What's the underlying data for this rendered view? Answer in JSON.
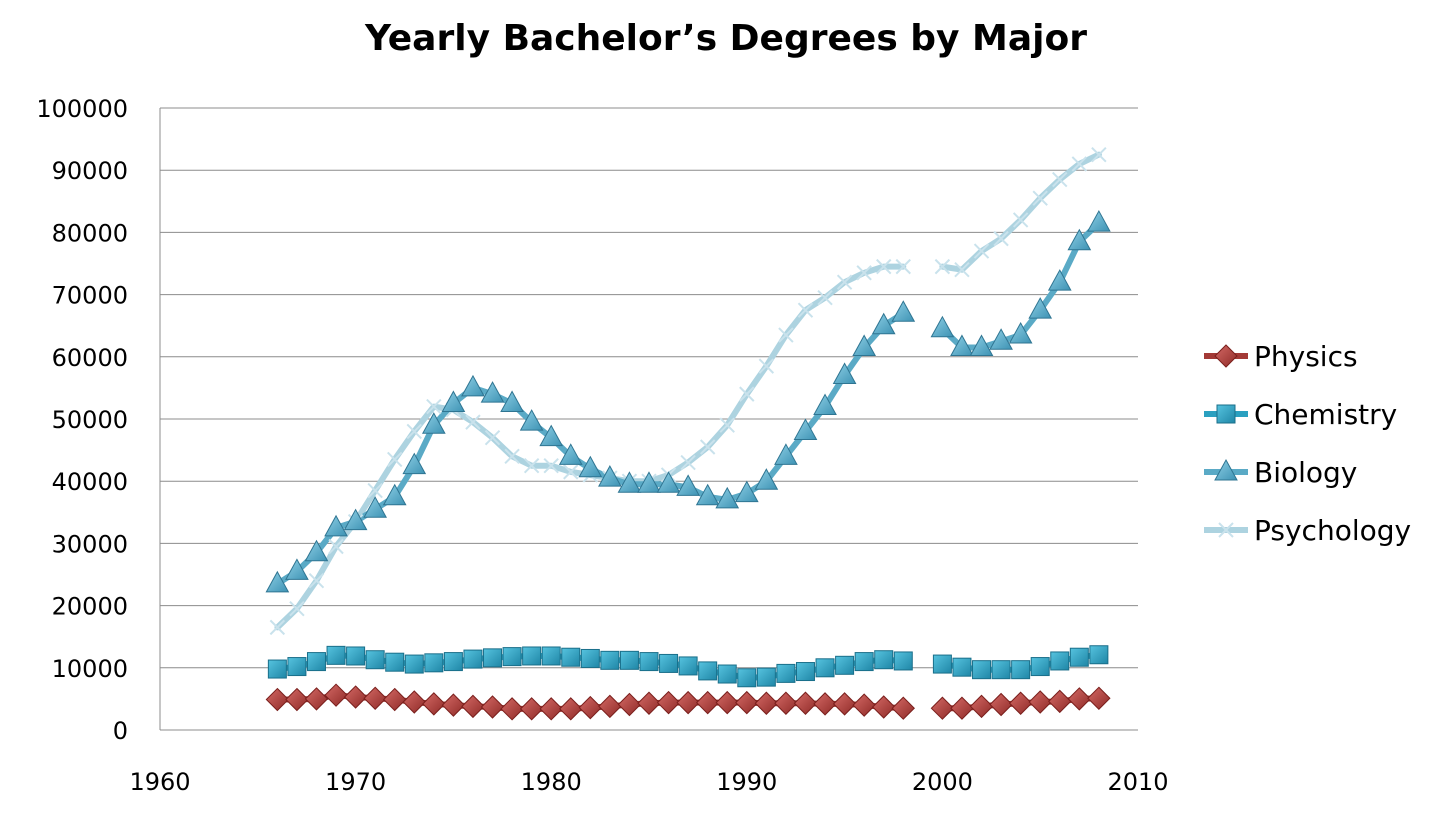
{
  "chart_data": {
    "type": "line",
    "title": "Yearly Bachelor’s Degrees by Major",
    "xlabel": "",
    "ylabel": "",
    "xlim": [
      1960,
      2010
    ],
    "ylim": [
      0,
      100000
    ],
    "x_ticks": [
      1960,
      1970,
      1980,
      1990,
      2000,
      2010
    ],
    "y_ticks": [
      0,
      10000,
      20000,
      30000,
      40000,
      50000,
      60000,
      70000,
      80000,
      90000,
      100000
    ],
    "grid": "horizontal",
    "legend_position": "right",
    "x": [
      1966,
      1967,
      1968,
      1969,
      1970,
      1971,
      1972,
      1973,
      1974,
      1975,
      1976,
      1977,
      1978,
      1979,
      1980,
      1981,
      1982,
      1983,
      1984,
      1985,
      1986,
      1987,
      1988,
      1989,
      1990,
      1991,
      1992,
      1993,
      1994,
      1995,
      1996,
      1997,
      1998,
      1999,
      2000,
      2001,
      2002,
      2003,
      2004,
      2005,
      2006,
      2007,
      2008
    ],
    "series": [
      {
        "name": "Physics",
        "color": "#a33a36",
        "marker": "diamond",
        "values": [
          4900,
          4900,
          5000,
          5600,
          5300,
          5100,
          4900,
          4500,
          4200,
          4000,
          3800,
          3700,
          3400,
          3400,
          3400,
          3400,
          3600,
          3800,
          4100,
          4300,
          4400,
          4400,
          4400,
          4400,
          4400,
          4300,
          4300,
          4300,
          4200,
          4200,
          4000,
          3700,
          3500,
          null,
          3500,
          3500,
          3800,
          4100,
          4300,
          4500,
          4600,
          5000,
          5100
        ]
      },
      {
        "name": "Chemistry",
        "color": "#2aa0c0",
        "marker": "square",
        "values": [
          9800,
          10200,
          11000,
          12000,
          11900,
          11300,
          10900,
          10600,
          10800,
          11000,
          11400,
          11600,
          11800,
          11900,
          11900,
          11700,
          11500,
          11200,
          11200,
          11000,
          10700,
          10300,
          9500,
          9000,
          8400,
          8500,
          9100,
          9400,
          10000,
          10400,
          11000,
          11300,
          11100,
          null,
          10600,
          10100,
          9700,
          9700,
          9700,
          10200,
          11100,
          11700,
          12100
        ]
      },
      {
        "name": "Biology",
        "color": "#5aaac6",
        "marker": "triangle",
        "values": [
          23500,
          25500,
          28500,
          32500,
          33500,
          35500,
          37500,
          42500,
          49000,
          52500,
          55000,
          54000,
          52500,
          49500,
          47000,
          44000,
          42000,
          40500,
          39500,
          39500,
          39500,
          39000,
          37500,
          37000,
          38000,
          40000,
          44000,
          48000,
          52000,
          57000,
          61500,
          65000,
          67000,
          null,
          64500,
          61500,
          61500,
          62500,
          63500,
          67500,
          72000,
          78500,
          81500
        ]
      },
      {
        "name": "Psychology",
        "color": "#add3e0",
        "marker": "x",
        "values": [
          16500,
          19500,
          24000,
          29500,
          33500,
          38500,
          43500,
          48000,
          52000,
          51500,
          49500,
          47000,
          44000,
          42500,
          42500,
          41500,
          41000,
          40500,
          40000,
          40000,
          41000,
          43000,
          45500,
          49000,
          54000,
          58500,
          63500,
          67500,
          69500,
          72000,
          73500,
          74500,
          74500,
          null,
          74500,
          74000,
          77000,
          79000,
          82000,
          85500,
          88500,
          91000,
          92500
        ]
      }
    ]
  }
}
